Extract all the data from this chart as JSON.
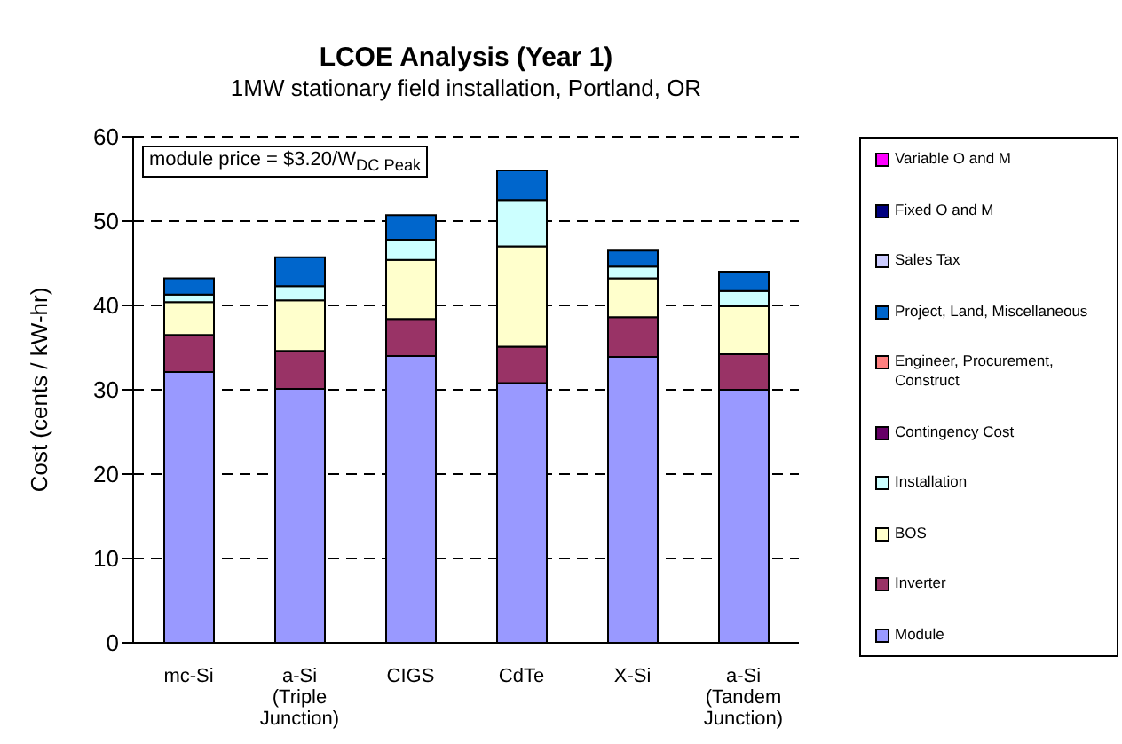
{
  "chart_data": {
    "type": "bar",
    "title": "LCOE Analysis (Year 1)",
    "subtitle": "1MW stationary field installation, Portland, OR",
    "ylabel": "Cost (cents / kW-hr)",
    "categories": [
      "mc-Si",
      "a-Si (Triple Junction)",
      "CIGS",
      "CdTe",
      "X-Si",
      "a-Si (Tandem Junction)"
    ],
    "stacked": true,
    "series": [
      {
        "name": "Module",
        "color": "#9999ff",
        "values": [
          32.1,
          30.1,
          34.0,
          30.8,
          33.9,
          30.0
        ]
      },
      {
        "name": "Inverter",
        "color": "#993366",
        "values": [
          4.4,
          4.5,
          4.4,
          4.3,
          4.7,
          4.2
        ]
      },
      {
        "name": "BOS",
        "color": "#ffffcc",
        "values": [
          3.9,
          6.0,
          7.0,
          11.9,
          4.6,
          5.7
        ]
      },
      {
        "name": "Installation",
        "color": "#ccffff",
        "values": [
          0.9,
          1.7,
          2.4,
          5.5,
          1.4,
          1.8
        ]
      },
      {
        "name": "Contingency Cost",
        "color": "#660066",
        "values": [
          0,
          0,
          0,
          0,
          0,
          0
        ]
      },
      {
        "name": "Engineer, Procurement, Construct",
        "color": "#ff8080",
        "values": [
          0,
          0,
          0,
          0,
          0,
          0
        ]
      },
      {
        "name": "Project, Land, Miscellaneous",
        "color": "#0066cc",
        "values": [
          1.9,
          3.4,
          2.9,
          3.5,
          1.9,
          2.3
        ]
      },
      {
        "name": "Sales Tax",
        "color": "#ccccff",
        "values": [
          0,
          0,
          0,
          0,
          0,
          0
        ]
      },
      {
        "name": "Fixed O and M",
        "color": "#000080",
        "values": [
          0,
          0,
          0,
          0,
          0,
          0
        ]
      },
      {
        "name": "Variable O and M",
        "color": "#ff00ff",
        "values": [
          0,
          0,
          0,
          0,
          0,
          0
        ]
      }
    ],
    "ylim": [
      0,
      60
    ],
    "yticks": [
      0,
      10,
      20,
      30,
      40,
      50,
      60
    ],
    "grid": "y",
    "line_style": "dashed",
    "legend": "right",
    "annotations": [
      "module price = $3.20/W$_{DC Peak}$"
    ]
  }
}
